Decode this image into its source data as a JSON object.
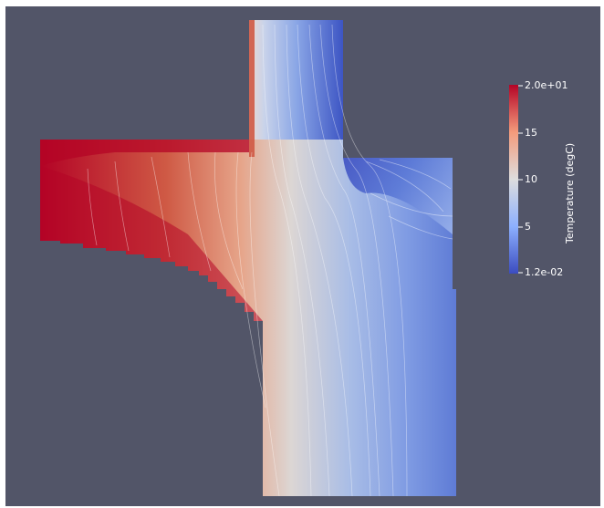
{
  "view": {
    "background_color": "#525568"
  },
  "colorbar": {
    "title": "Temperature (degC)",
    "ticks": [
      "2.0e+01",
      "15",
      "10",
      "5",
      "1.2e-02"
    ],
    "range": [
      0.012,
      20.0
    ],
    "colors": {
      "high": "#b40426",
      "mid": "#dddddd",
      "low": "#3b4cc0"
    }
  }
}
